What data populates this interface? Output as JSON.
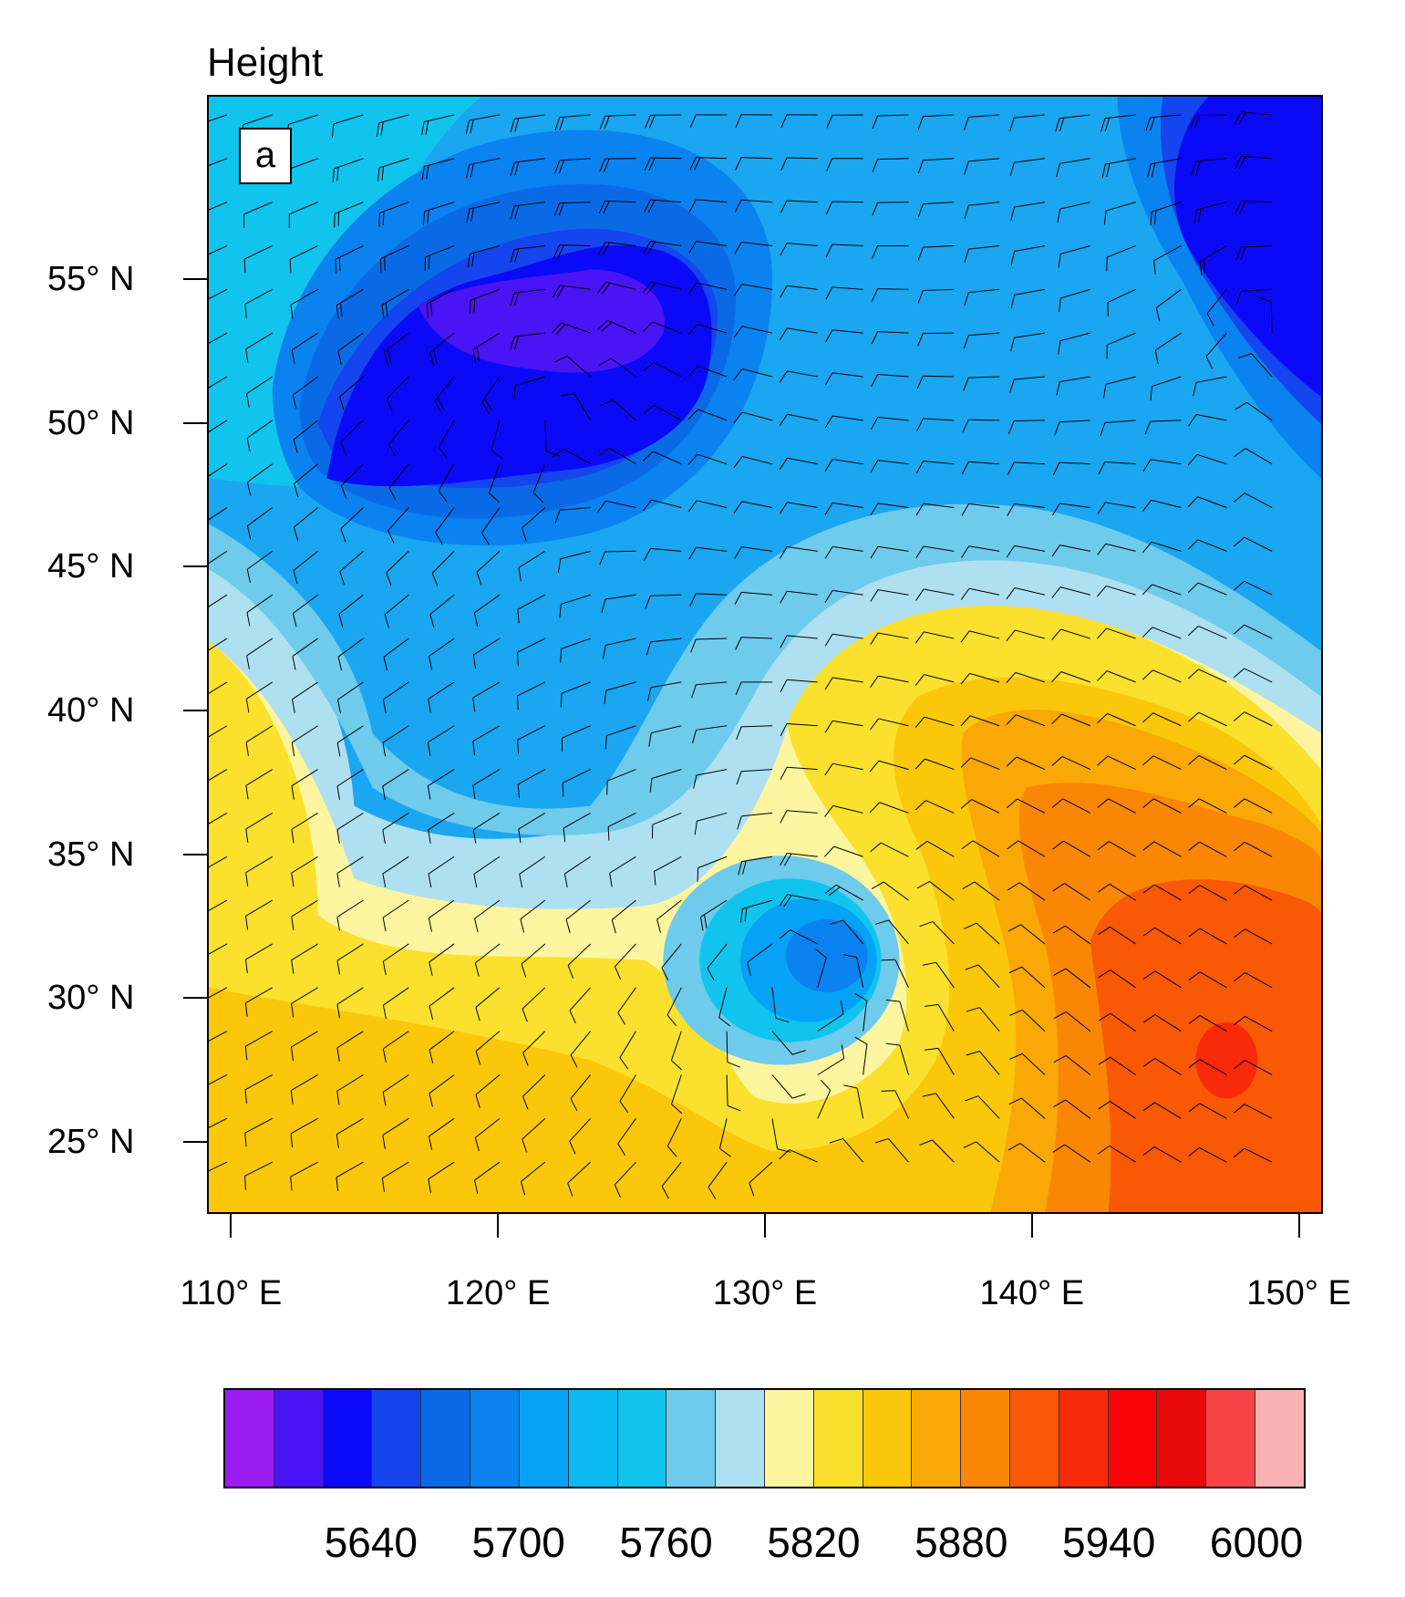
{
  "title": "Height",
  "panel_label": "a",
  "y_axis": {
    "ticks": [
      {
        "lat": 55,
        "label": "55° N"
      },
      {
        "lat": 50,
        "label": "50° N"
      },
      {
        "lat": 45,
        "label": "45° N"
      },
      {
        "lat": 40,
        "label": "40° N"
      },
      {
        "lat": 35,
        "label": "35° N"
      },
      {
        "lat": 30,
        "label": "30° N"
      },
      {
        "lat": 25,
        "label": "25° N"
      }
    ]
  },
  "x_axis": {
    "ticks": [
      {
        "lon": 110,
        "label": "110° E"
      },
      {
        "lon": 120,
        "label": "120° E"
      },
      {
        "lon": 130,
        "label": "130° E"
      },
      {
        "lon": 140,
        "label": "140° E"
      },
      {
        "lon": 150,
        "label": "150° E"
      }
    ]
  },
  "map_extent": {
    "lon_min": 109.1,
    "lon_max": 150.9,
    "lat_min": 22.5,
    "lat_max": 61.4
  },
  "colorbar": {
    "colors": [
      "#9a1cf2",
      "#4a14f5",
      "#0a0af8",
      "#1445ee",
      "#0a6ae6",
      "#0a82f0",
      "#05a2f5",
      "#0cbaf2",
      "#10c4ee",
      "#6ecbec",
      "#aee0f2",
      "#fdf5a0",
      "#fbe12e",
      "#fbc70a",
      "#f9a805",
      "#f98705",
      "#f95805",
      "#f92a0a",
      "#f90505",
      "#e60a0a",
      "#f74444",
      "#fbb2b2"
    ],
    "labels": [
      "5640",
      "5700",
      "5760",
      "5820",
      "5880",
      "5940",
      "6000"
    ]
  },
  "height_field": {
    "centers": [
      {
        "name": "low-northwest",
        "lon": 123.0,
        "lat": 52.5,
        "value": 5620
      },
      {
        "name": "low-northeast",
        "lon": 149.5,
        "lat": 55.0,
        "value": 5640
      },
      {
        "name": "low-east-sea",
        "lon": 132.5,
        "lat": 28.8,
        "value": 5720
      },
      {
        "name": "high-southeast",
        "lon": 147.0,
        "lat": 28.0,
        "value": 5945
      }
    ]
  }
}
